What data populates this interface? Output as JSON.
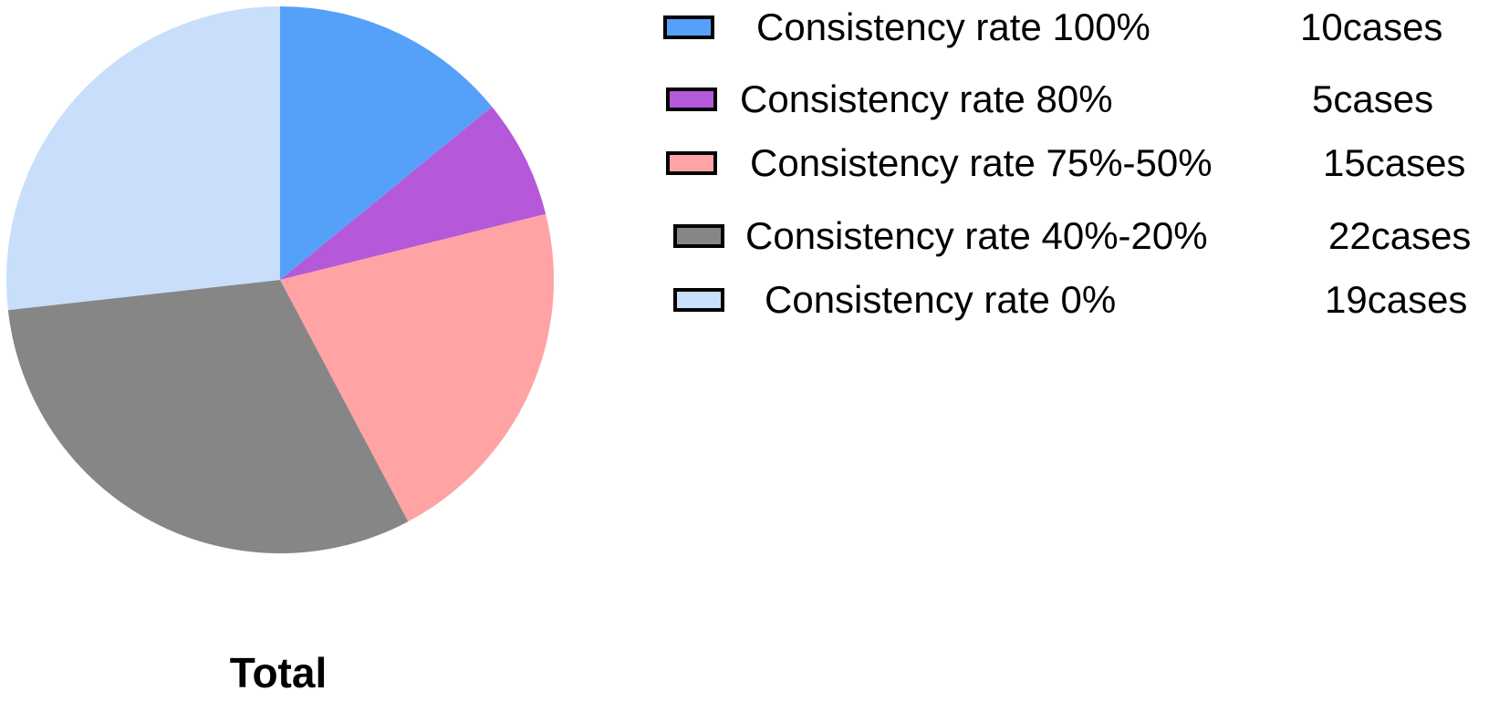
{
  "chart_data": {
    "type": "pie",
    "title": "Total",
    "legend_position": "right",
    "slices": [
      {
        "label": "Consistency rate 100%",
        "count_label": "10cases",
        "value": 10,
        "color": "#55A1FA"
      },
      {
        "label": "Consistency rate 80%",
        "count_label": "5cases",
        "value": 5,
        "color": "#B658DA"
      },
      {
        "label": "Consistency rate 75%-50%",
        "count_label": "15cases",
        "value": 15,
        "color": "#FFA3A4"
      },
      {
        "label": "Consistency rate 40%-20%",
        "count_label": "22cases",
        "value": 22,
        "color": "#868686"
      },
      {
        "label": "Consistency rate 0%",
        "count_label": "19cases",
        "value": 19,
        "color": "#C8DEFA"
      }
    ]
  }
}
